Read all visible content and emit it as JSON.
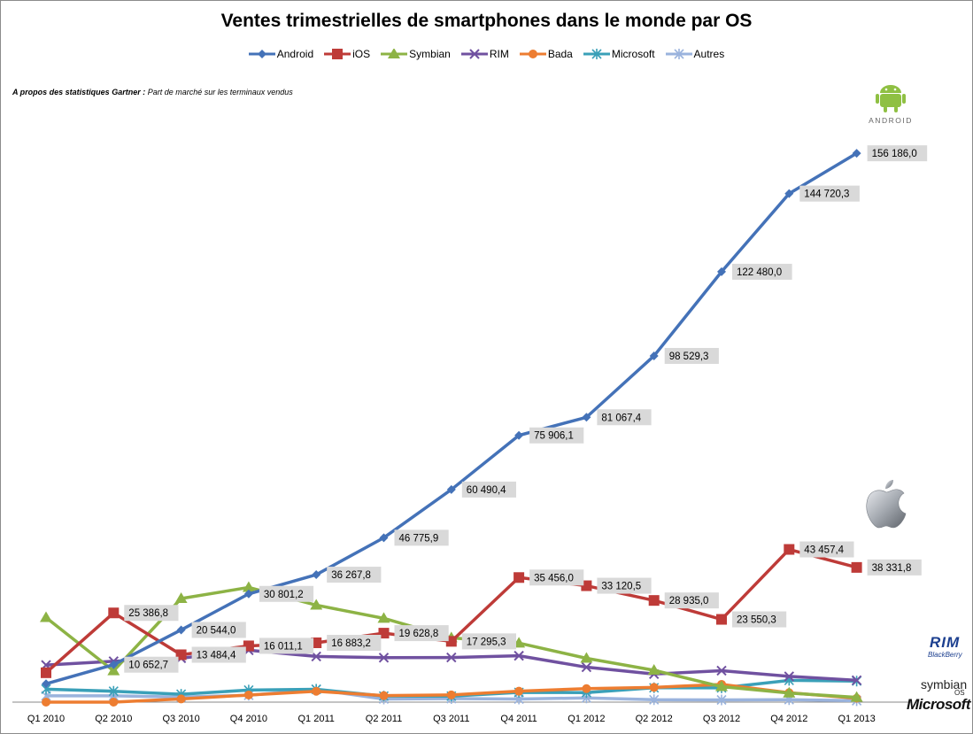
{
  "chart_data": {
    "type": "line",
    "title": "Ventes trimestrielles de smartphones dans le monde par OS",
    "note_bold": "A propos des statistiques Gartner :",
    "note_rest": " Part de marché sur les terminaux vendus",
    "categories": [
      "Q1 2010",
      "Q2 2010",
      "Q3 2010",
      "Q4 2010",
      "Q1 2011",
      "Q2 2011",
      "Q3 2011",
      "Q4 2011",
      "Q1 2012",
      "Q2 2012",
      "Q3 2012",
      "Q4 2012",
      "Q1 2013"
    ],
    "ylim": [
      0,
      160000
    ],
    "grid": false,
    "legend_position": "top",
    "series": [
      {
        "name": "Android",
        "color": "#4472b8",
        "marker": "diamond",
        "values": [
          5227,
          10653,
          20544,
          30801,
          36268,
          46776,
          60490,
          75906,
          81067,
          98529,
          122480,
          144720,
          156186
        ],
        "labels": [
          "",
          "10 652,7",
          "20 544,0",
          "30 801,2",
          "36 267,8",
          "46 775,9",
          "60 490,4",
          "75 906,1",
          "81 067,4",
          "98 529,3",
          "122 480,0",
          "144 720,3",
          "156 186,0"
        ]
      },
      {
        "name": "iOS",
        "color": "#be3b38",
        "marker": "square",
        "values": [
          8360,
          25387,
          13484,
          16011,
          16883,
          19629,
          17295,
          35456,
          33121,
          28935,
          23550,
          43457,
          38332
        ],
        "labels": [
          "",
          "25 386,8",
          "13 484,4",
          "16 011,1",
          "16 883,2",
          "19 628,8",
          "17 295,3",
          "35 456,0",
          "33 120,5",
          "28 935,0",
          "23 550,3",
          "43 457,4",
          "38 331,8"
        ]
      },
      {
        "name": "Symbian",
        "color": "#8db345",
        "marker": "triangle",
        "values": [
          24070,
          8900,
          29480,
          32640,
          27600,
          23850,
          18300,
          16800,
          12470,
          9070,
          4400,
          2570,
          1350
        ],
        "labels": []
      },
      {
        "name": "RIM",
        "color": "#7051a0",
        "marker": "x",
        "values": [
          10550,
          11630,
          12500,
          14760,
          13000,
          12650,
          12700,
          13200,
          9940,
          7990,
          8950,
          7330,
          6220
        ],
        "labels": []
      },
      {
        "name": "Bada",
        "color": "#ed7d31",
        "marker": "circle",
        "values": [
          0,
          0,
          900,
          2030,
          3100,
          1850,
          2050,
          3110,
          3840,
          4200,
          5050,
          2680,
          1100
        ],
        "labels": []
      },
      {
        "name": "Microsoft",
        "color": "#3aa0b8",
        "marker": "star",
        "values": [
          3700,
          3100,
          2250,
          3420,
          3660,
          1720,
          1700,
          2760,
          2710,
          4090,
          4060,
          6190,
          5990
        ],
        "labels": []
      },
      {
        "name": "Autres",
        "color": "#9ab3dd",
        "marker": "star",
        "values": [
          1800,
          1800,
          1450,
          1950,
          3600,
          890,
          1000,
          880,
          1200,
          690,
          630,
          700,
          410
        ],
        "labels": []
      }
    ]
  },
  "logos": {
    "android": "ANDROID",
    "rim": "RIM",
    "blackberry": "BlackBerry",
    "symbian": "symbian",
    "symbian_os": "OS",
    "microsoft": "Microsoft"
  },
  "icons": [
    "android-robot-icon",
    "apple-logo-icon",
    "rim-logo-icon",
    "symbian-logo-icon",
    "microsoft-logo-icon"
  ]
}
